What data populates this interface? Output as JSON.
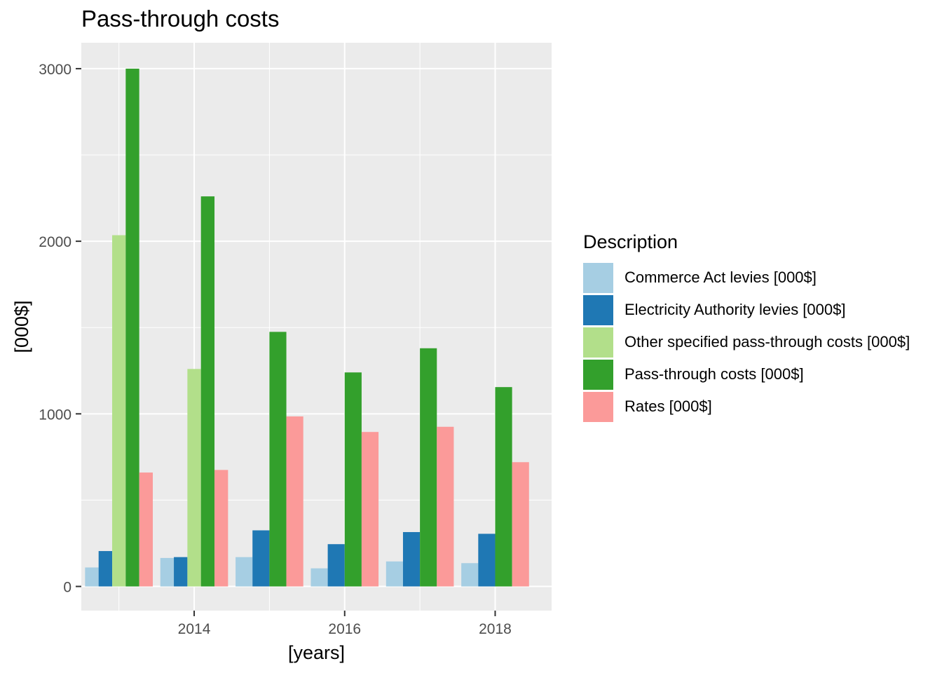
{
  "chart_data": {
    "type": "bar",
    "title": "Pass-through costs",
    "xlabel": "[years]",
    "ylabel": "[000$]",
    "x": [
      2013,
      2014,
      2015,
      2016,
      2017,
      2018
    ],
    "x_ticks": [
      2014,
      2016,
      2018
    ],
    "y_ticks": [
      0,
      1000,
      2000,
      3000
    ],
    "xlim": [
      2012.5,
      2018.75
    ],
    "ylim": [
      -140,
      3150
    ],
    "grid": true,
    "legend": {
      "title": "Description",
      "placement": "right"
    },
    "series": [
      {
        "name": "Commerce Act levies [000$]",
        "color": "#A6CEE3",
        "values": [
          110,
          165,
          170,
          105,
          145,
          135
        ]
      },
      {
        "name": "Electricity Authority levies [000$]",
        "color": "#1F78B4",
        "values": [
          205,
          170,
          325,
          245,
          315,
          305
        ]
      },
      {
        "name": "Other specified pass-through costs [000$]",
        "color": "#B2DF8A",
        "values": [
          2035,
          1260,
          0,
          0,
          0,
          0
        ]
      },
      {
        "name": "Pass-through costs [000$]",
        "color": "#33A02C",
        "values": [
          3000,
          2260,
          1475,
          1240,
          1380,
          1155
        ]
      },
      {
        "name": "Rates [000$]",
        "color": "#FB9A99",
        "values": [
          660,
          675,
          985,
          895,
          925,
          720
        ]
      }
    ]
  }
}
